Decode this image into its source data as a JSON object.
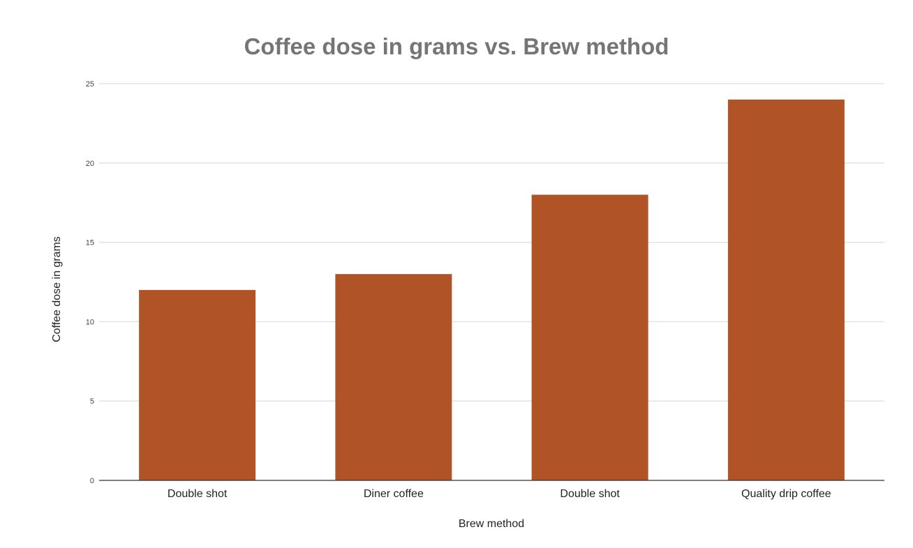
{
  "chart_data": {
    "type": "bar",
    "title": "Coffee dose in grams vs. Brew method",
    "xlabel": "Brew method",
    "ylabel": "Coffee dose in grams",
    "categories": [
      "Double shot",
      "Diner coffee",
      "Double shot",
      "Quality drip coffee"
    ],
    "values": [
      12,
      13,
      18,
      24
    ],
    "ylim": [
      0,
      25
    ],
    "yticks": [
      0,
      5,
      10,
      15,
      20,
      25
    ],
    "grid": true,
    "legend": "none",
    "colors": {
      "bar": "#b05428",
      "grid": "#e0e0e0",
      "axis": "#333333",
      "title": "#757575"
    }
  }
}
